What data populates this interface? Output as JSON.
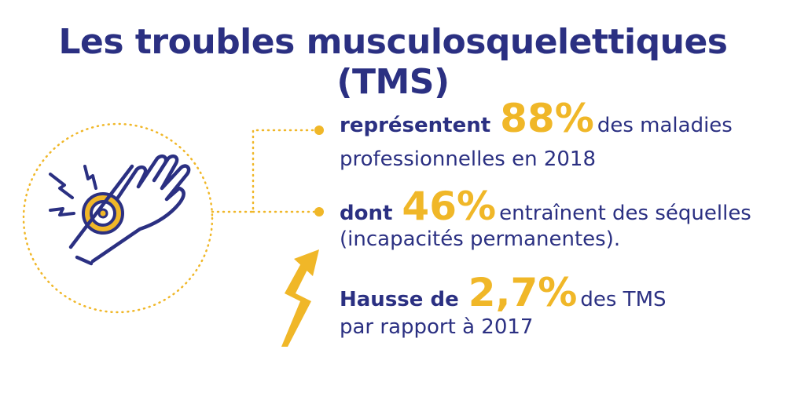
{
  "title": "Les troubles musculosquelettiques (TMS)",
  "colors": {
    "navy": "#2b3082",
    "gold": "#f0b728"
  },
  "icons": [
    "hand-pain-icon",
    "lightning-icon",
    "arrow-up-icon"
  ],
  "stats": [
    {
      "lead": "représentent",
      "value": "88%",
      "rest": "des maladies",
      "line2": "professionnelles en 2018"
    },
    {
      "lead": "dont",
      "value": "46%",
      "rest": "entraînent des séquelles",
      "line2": "(incapacités permanentes)."
    },
    {
      "lead": "Hausse de",
      "value": "2,7%",
      "rest": "des TMS",
      "line2": "par rapport à 2017"
    }
  ]
}
